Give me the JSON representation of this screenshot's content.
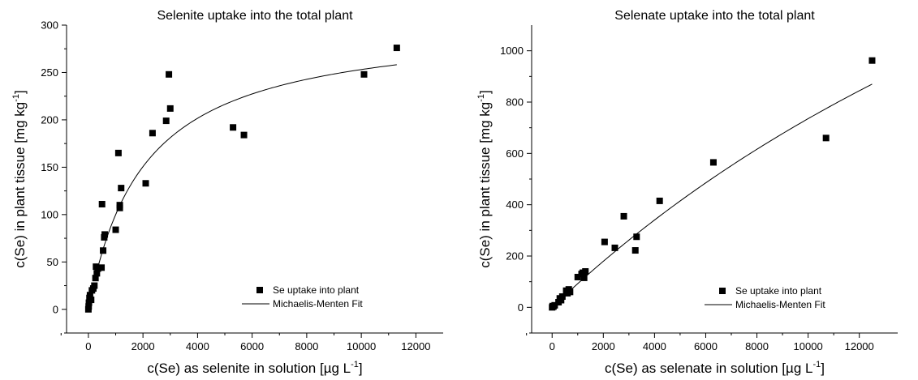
{
  "chart_data": [
    {
      "type": "scatter",
      "title": "Selenite uptake into the total plant",
      "xlabel": "c(Se) as selenite in solution [µg L",
      "xlabel_sup": "-1",
      "xlabel_end": "]",
      "ylabel": "c(Se) in plant tissue [mg kg",
      "ylabel_sup": "-1",
      "ylabel_end": "]",
      "xlim": [
        -800,
        13000
      ],
      "ylim": [
        -25,
        300
      ],
      "xticks": [
        0,
        2000,
        4000,
        6000,
        8000,
        10000,
        12000
      ],
      "yticks": [
        0,
        50,
        100,
        150,
        200,
        250,
        300
      ],
      "xtick_labels": [
        "0",
        "2000",
        "4000",
        "6000",
        "8000",
        "10000",
        "12000"
      ],
      "ytick_labels": [
        "0",
        "50",
        "100",
        "150",
        "200",
        "250",
        "300"
      ],
      "legend_position": "bottom-right",
      "series": [
        {
          "name": "Se uptake into plant",
          "kind": "scatter",
          "points": [
            [
              0,
              0
            ],
            [
              10,
              3
            ],
            [
              20,
              7
            ],
            [
              40,
              12
            ],
            [
              60,
              15
            ],
            [
              100,
              10
            ],
            [
              130,
              20
            ],
            [
              180,
              22
            ],
            [
              220,
              25
            ],
            [
              260,
              33
            ],
            [
              280,
              45
            ],
            [
              310,
              38
            ],
            [
              350,
              43
            ],
            [
              480,
              44
            ],
            [
              500,
              111
            ],
            [
              540,
              62
            ],
            [
              580,
              76
            ],
            [
              600,
              79
            ],
            [
              1000,
              84
            ],
            [
              1100,
              165
            ],
            [
              1150,
              107
            ],
            [
              1150,
              110
            ],
            [
              1200,
              128
            ],
            [
              2100,
              133
            ],
            [
              2350,
              186
            ],
            [
              2850,
              199
            ],
            [
              2950,
              248
            ],
            [
              3000,
              212
            ],
            [
              5300,
              192
            ],
            [
              5700,
              184
            ],
            [
              10100,
              248
            ],
            [
              11300,
              276
            ]
          ]
        },
        {
          "name": "Michaelis-Menten Fit",
          "kind": "line",
          "vmax": 305,
          "km": 2050,
          "x_range": [
            300,
            11300
          ]
        }
      ]
    },
    {
      "type": "scatter",
      "title": "Selenate uptake into the total plant",
      "xlabel": "c(Se) as selenate in solution [µg L",
      "xlabel_sup": "-1",
      "xlabel_end": "]",
      "ylabel": "c(Se) in plant tissue [mg kg",
      "ylabel_sup": "-1",
      "ylabel_end": "]",
      "xlim": [
        -800,
        13500
      ],
      "ylim": [
        -100,
        1100
      ],
      "xticks": [
        0,
        2000,
        4000,
        6000,
        8000,
        10000,
        12000
      ],
      "yticks": [
        0,
        200,
        400,
        600,
        800,
        1000
      ],
      "xtick_labels": [
        "0",
        "2000",
        "4000",
        "6000",
        "8000",
        "10000",
        "12000"
      ],
      "ytick_labels": [
        "0",
        "200",
        "400",
        "600",
        "800",
        "1000"
      ],
      "legend_position": "bottom-right",
      "series": [
        {
          "name": "Se uptake into plant",
          "kind": "scatter",
          "points": [
            [
              0,
              0
            ],
            [
              20,
              5
            ],
            [
              50,
              3
            ],
            [
              100,
              8
            ],
            [
              250,
              20
            ],
            [
              300,
              35
            ],
            [
              350,
              28
            ],
            [
              400,
              42
            ],
            [
              550,
              65
            ],
            [
              600,
              55
            ],
            [
              650,
              70
            ],
            [
              700,
              60
            ],
            [
              1000,
              118
            ],
            [
              1150,
              130
            ],
            [
              1200,
              135
            ],
            [
              1250,
              115
            ],
            [
              1300,
              140
            ],
            [
              2050,
              255
            ],
            [
              2450,
              232
            ],
            [
              2800,
              355
            ],
            [
              3250,
              222
            ],
            [
              3300,
              275
            ],
            [
              4200,
              415
            ],
            [
              6300,
              565
            ],
            [
              10700,
              660
            ],
            [
              12500,
              962
            ]
          ]
        },
        {
          "name": "Michaelis-Menten Fit",
          "kind": "line",
          "vmax": 3250,
          "km": 34200,
          "x_range": [
            0,
            12500
          ]
        }
      ]
    }
  ]
}
